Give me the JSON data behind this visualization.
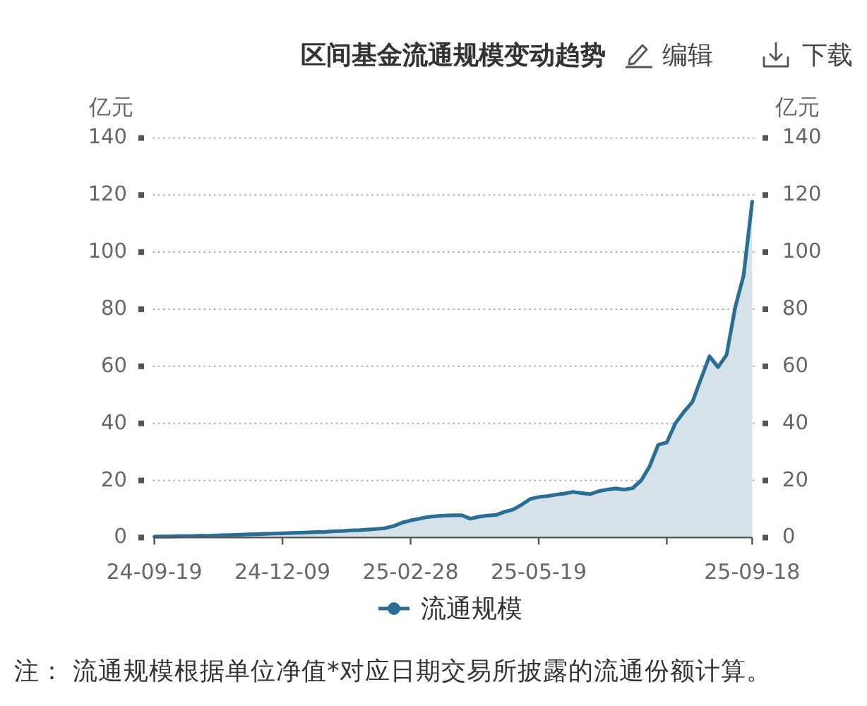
{
  "chart_data": {
    "type": "area",
    "title": "区间基金流通规模变动趋势",
    "categories": [
      "24-09-19",
      null,
      null,
      null,
      null,
      null,
      null,
      null,
      null,
      null,
      null,
      null,
      null,
      null,
      null,
      "24-12-09",
      null,
      null,
      null,
      null,
      null,
      null,
      null,
      null,
      null,
      null,
      null,
      null,
      null,
      null,
      "25-02-28",
      null,
      null,
      null,
      null,
      null,
      null,
      null,
      null,
      null,
      null,
      null,
      null,
      null,
      null,
      "25-05-19",
      null,
      null,
      null,
      null,
      null,
      null,
      null,
      null,
      null,
      null,
      null,
      null,
      null,
      null,
      null,
      null,
      null,
      null,
      null,
      null,
      null,
      null,
      null,
      null,
      "25-09-18"
    ],
    "series": [
      {
        "name": "流通规模",
        "color": "#2b6e94",
        "values": [
          0.3,
          0.4,
          0.4,
          0.5,
          0.5,
          0.6,
          0.6,
          0.7,
          0.8,
          0.9,
          1.0,
          1.1,
          1.2,
          1.3,
          1.4,
          1.5,
          1.6,
          1.7,
          1.8,
          1.9,
          2.0,
          2.2,
          2.3,
          2.5,
          2.6,
          2.8,
          3.0,
          3.3,
          4.0,
          5.2,
          6.0,
          6.6,
          7.2,
          7.5,
          7.7,
          7.8,
          7.8,
          6.6,
          7.3,
          7.7,
          7.9,
          9.0,
          9.8,
          11.5,
          13.5,
          14.2,
          14.5,
          15.0,
          15.4,
          16.0,
          15.6,
          15.2,
          16.2,
          16.8,
          17.2,
          16.8,
          17.3,
          20.0,
          25.0,
          32.5,
          33.3,
          40.0,
          44.0,
          47.5,
          55.6,
          63.5,
          59.7,
          64.0,
          80.5,
          91.9,
          117.7
        ]
      }
    ],
    "ylabel": "亿元",
    "y2label": "亿元",
    "ylim": [
      0,
      140
    ],
    "yticks": [
      0,
      20,
      40,
      60,
      80,
      100,
      120,
      140
    ],
    "y2lim": [
      0,
      140
    ],
    "y2ticks": [
      0,
      20,
      40,
      60,
      80,
      100,
      120,
      140
    ],
    "grid": "y",
    "legend": "bottom",
    "annotations": [
      "编辑",
      "下载",
      "注： 流通规模根据单位净值*对应日期交易所披露的流通份额计算。"
    ]
  }
}
